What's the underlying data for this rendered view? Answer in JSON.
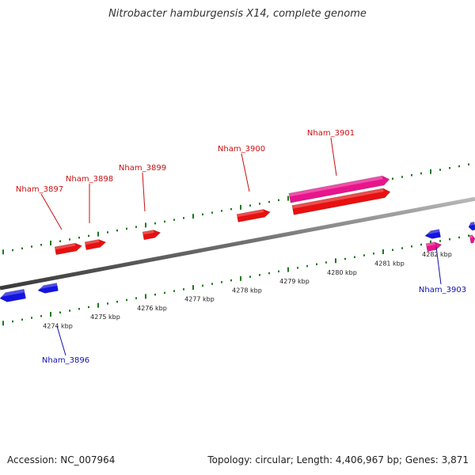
{
  "title": "Nitrobacter hamburgensis X14, complete genome",
  "footer": {
    "accession": "Accession: NC_007964",
    "stats": "Topology: circular; Length: 4,406,967 bp; Genes: 3,871"
  },
  "colors": {
    "forward_cds": "#e81010",
    "forward_rna": "#e8148c",
    "reverse_cds": "#1414e0",
    "reverse_rna": "#e8148c",
    "backbone": "#777777",
    "ticks": "#1e7a1e",
    "forward_label": "#c81010",
    "reverse_label": "#1010b0"
  },
  "ruler": {
    "labels": [
      "4274 kbp",
      "4275 kbp",
      "4276 kbp",
      "4277 kbp",
      "4278 kbp",
      "4279 kbp",
      "4280 kbp",
      "4281 kbp",
      "4282 kbp"
    ]
  },
  "genes": {
    "forward": [
      {
        "name": "Nham_3897"
      },
      {
        "name": "Nham_3898"
      },
      {
        "name": "Nham_3899"
      },
      {
        "name": "Nham_3900"
      },
      {
        "name": "Nham_3901"
      }
    ],
    "reverse": [
      {
        "name": "Nham_3896"
      },
      {
        "name": "Nham_3903"
      }
    ]
  }
}
